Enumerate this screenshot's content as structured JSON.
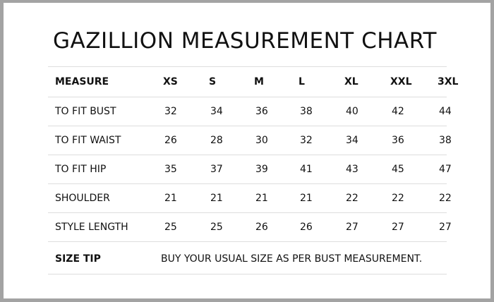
{
  "title": "GAZILLION MEASUREMENT CHART",
  "table": {
    "header": [
      "MEASURE",
      "XS",
      "S",
      "M",
      "L",
      "XL",
      "XXL",
      "3XL"
    ],
    "rows": [
      {
        "label": "TO FIT BUST",
        "values": [
          "32",
          "34",
          "36",
          "38",
          "40",
          "42",
          "44"
        ]
      },
      {
        "label": "TO FIT WAIST",
        "values": [
          "26",
          "28",
          "30",
          "32",
          "34",
          "36",
          "38"
        ]
      },
      {
        "label": "TO FIT HIP",
        "values": [
          "35",
          "37",
          "39",
          "41",
          "43",
          "45",
          "47"
        ]
      },
      {
        "label": "SHOULDER",
        "values": [
          "21",
          "21",
          "21",
          "21",
          "22",
          "22",
          "22"
        ]
      },
      {
        "label": "STYLE LENGTH",
        "values": [
          "25",
          "25",
          "26",
          "26",
          "27",
          "27",
          "27"
        ]
      }
    ],
    "size_tip": {
      "label": "SIZE TIP",
      "text": "BUY YOUR USUAL SIZE AS PER BUST MEASUREMENT."
    }
  },
  "colors": {
    "border": "#a3a3a3",
    "rule": "#dddddd",
    "text": "#111111"
  }
}
